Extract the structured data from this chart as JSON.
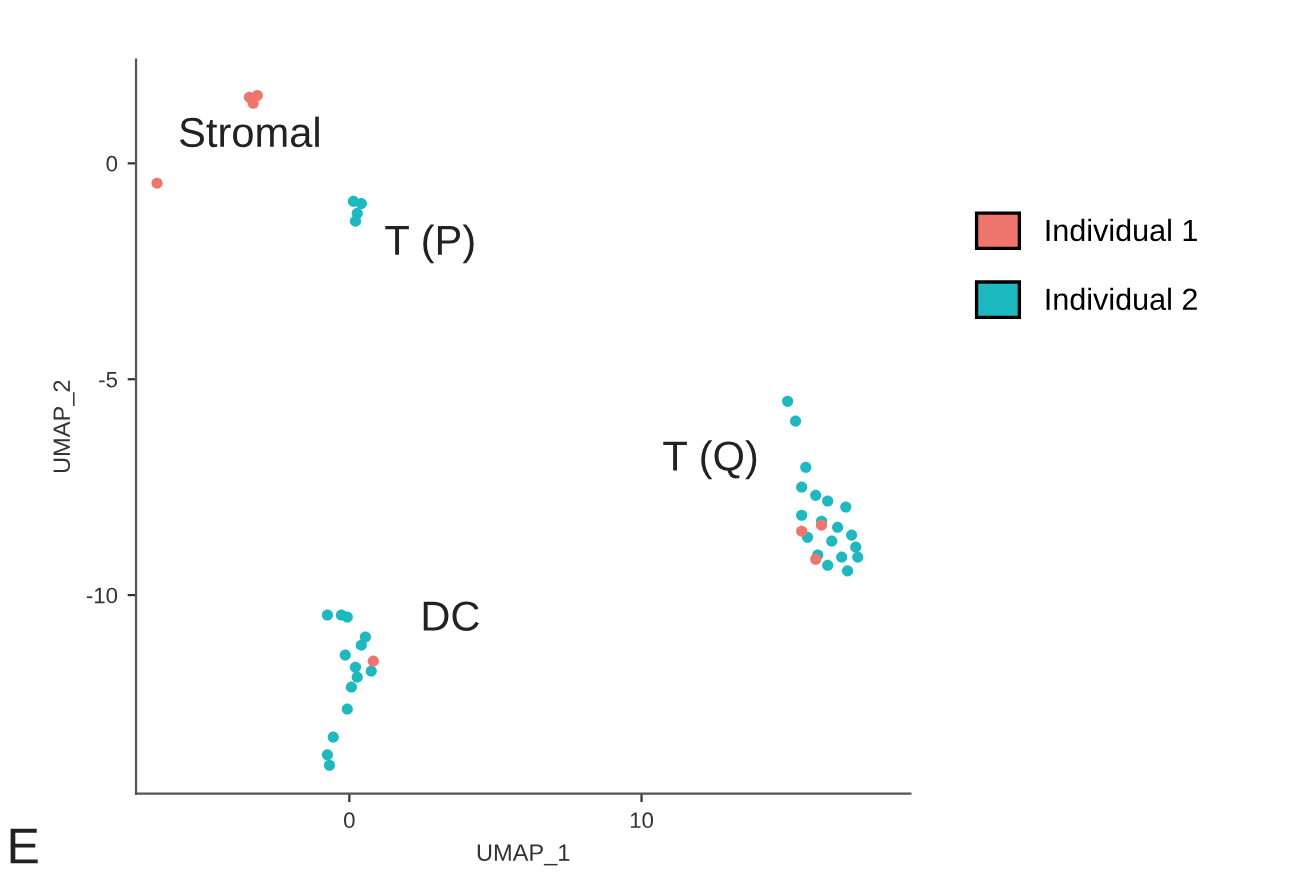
{
  "chart_data": {
    "type": "scatter",
    "xlabel": "UMAP_1",
    "ylabel": "UMAP_2",
    "xlim": [
      -7.3,
      19.2
    ],
    "ylim": [
      -14.6,
      2.4
    ],
    "xticks": [
      0,
      10
    ],
    "yticks": [
      -10,
      -5,
      0
    ],
    "grid": false,
    "legend": "right",
    "marker": "circle",
    "series": [
      {
        "name": "Individual 1",
        "color": "#f0766d",
        "x": [
          -3.42,
          -3.15,
          -3.29,
          -6.58,
          0.82,
          15.48,
          16.16,
          15.96
        ],
        "values": [
          1.53,
          1.57,
          1.39,
          -0.46,
          -11.53,
          -8.52,
          -8.38,
          -9.17
        ]
      },
      {
        "name": "Individual 2",
        "color": "#1cb9c1",
        "x": [
          0.14,
          0.41,
          0.27,
          0.21,
          -0.75,
          -0.27,
          -0.07,
          0.55,
          0.41,
          -0.14,
          0.21,
          0.75,
          0.27,
          0.07,
          -0.07,
          -0.55,
          -0.75,
          -0.68,
          15.0,
          15.27,
          15.62,
          15.48,
          15.96,
          16.37,
          16.99,
          15.48,
          16.16,
          16.71,
          17.19,
          15.68,
          16.51,
          17.33,
          16.03,
          16.85,
          17.4,
          16.37,
          17.05
        ],
        "values": [
          -0.88,
          -0.93,
          -1.16,
          -1.34,
          -10.46,
          -10.46,
          -10.51,
          -10.97,
          -11.16,
          -11.39,
          -11.67,
          -11.76,
          -11.9,
          -12.13,
          -12.64,
          -13.29,
          -13.7,
          -13.94,
          -5.51,
          -5.97,
          -7.04,
          -7.5,
          -7.69,
          -7.82,
          -7.96,
          -8.15,
          -8.29,
          -8.43,
          -8.61,
          -8.66,
          -8.75,
          -8.89,
          -9.07,
          -9.12,
          -9.12,
          -9.31,
          -9.44
        ]
      }
    ],
    "annotations": [
      "Stromal",
      "T (P)",
      "T (Q)",
      "DC",
      "E"
    ]
  }
}
